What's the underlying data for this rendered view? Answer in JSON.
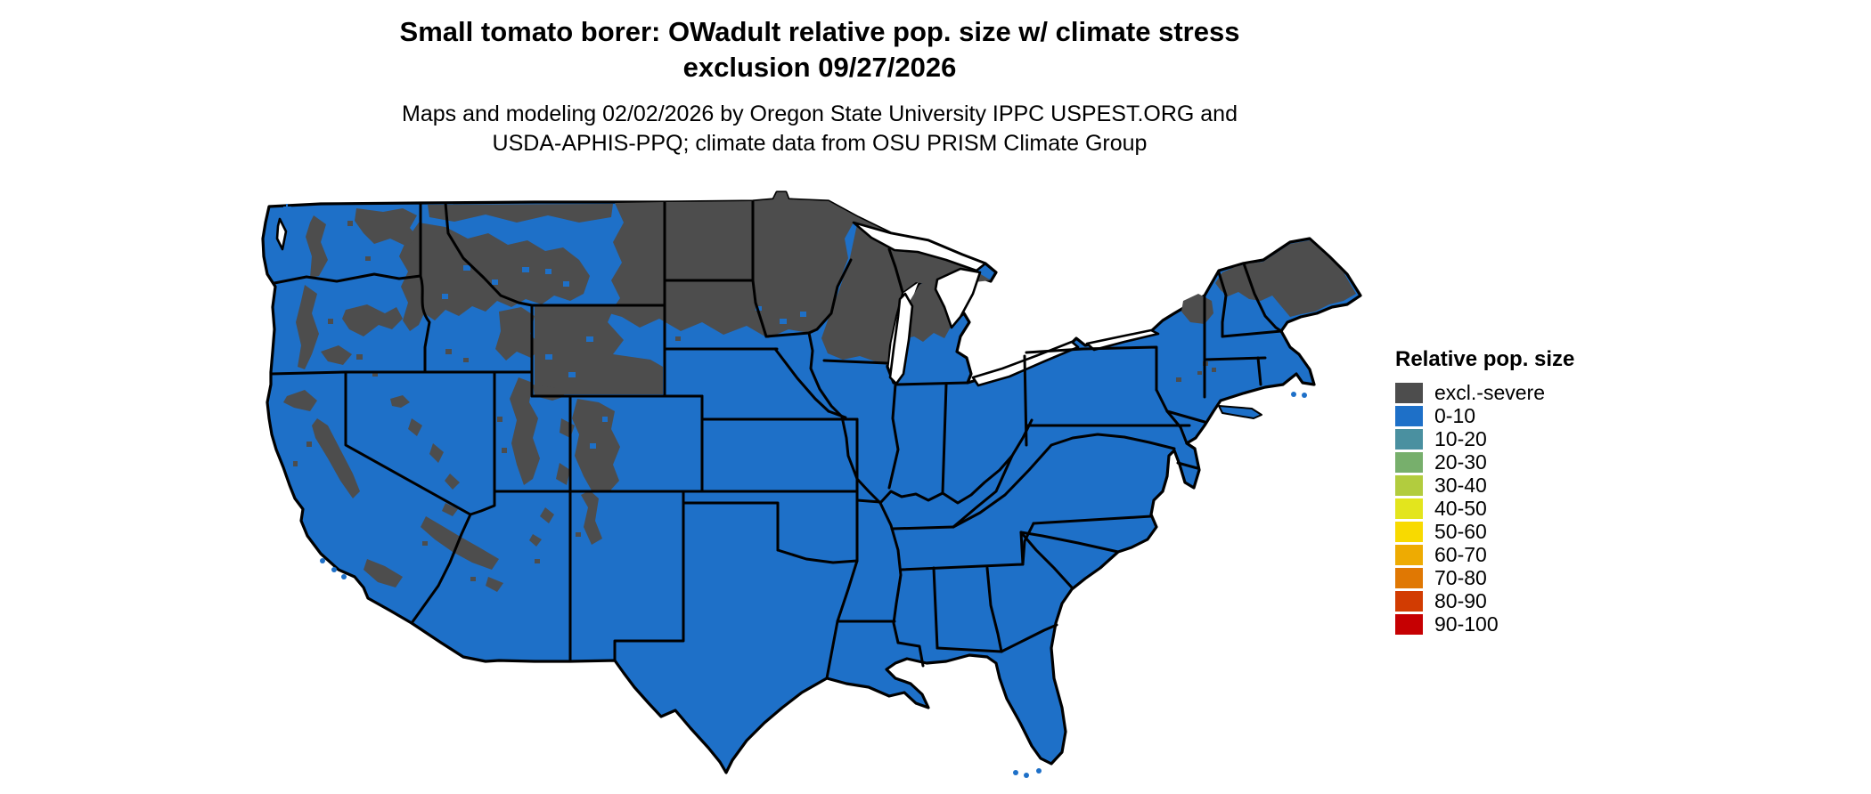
{
  "header": {
    "title_line1": "Small tomato borer: OWadult relative pop. size w/ climate stress",
    "title_line2": "exclusion 09/27/2026",
    "subtitle_line1": "Maps and modeling 02/02/2026 by Oregon State University IPPC USPEST.ORG and",
    "subtitle_line2": "USDA-APHIS-PPQ; climate data from OSU PRISM Climate Group"
  },
  "legend": {
    "title": "Relative pop. size",
    "items": [
      {
        "label": "excl.-severe",
        "color": "#4d4d4d"
      },
      {
        "label": "0-10",
        "color": "#1e70c8"
      },
      {
        "label": "10-20",
        "color": "#4a90a0"
      },
      {
        "label": "20-30",
        "color": "#77af6c"
      },
      {
        "label": "30-40",
        "color": "#b2cc3e"
      },
      {
        "label": "40-50",
        "color": "#e3e51d"
      },
      {
        "label": "50-60",
        "color": "#f8da00"
      },
      {
        "label": "60-70",
        "color": "#eeab02"
      },
      {
        "label": "70-80",
        "color": "#e07803"
      },
      {
        "label": "80-90",
        "color": "#d23c02"
      },
      {
        "label": "90-100",
        "color": "#c60002"
      }
    ]
  },
  "map": {
    "colors": {
      "land": "#1e70c8",
      "excluded": "#4d4d4d",
      "border": "#000000",
      "background": "#ffffff"
    }
  }
}
